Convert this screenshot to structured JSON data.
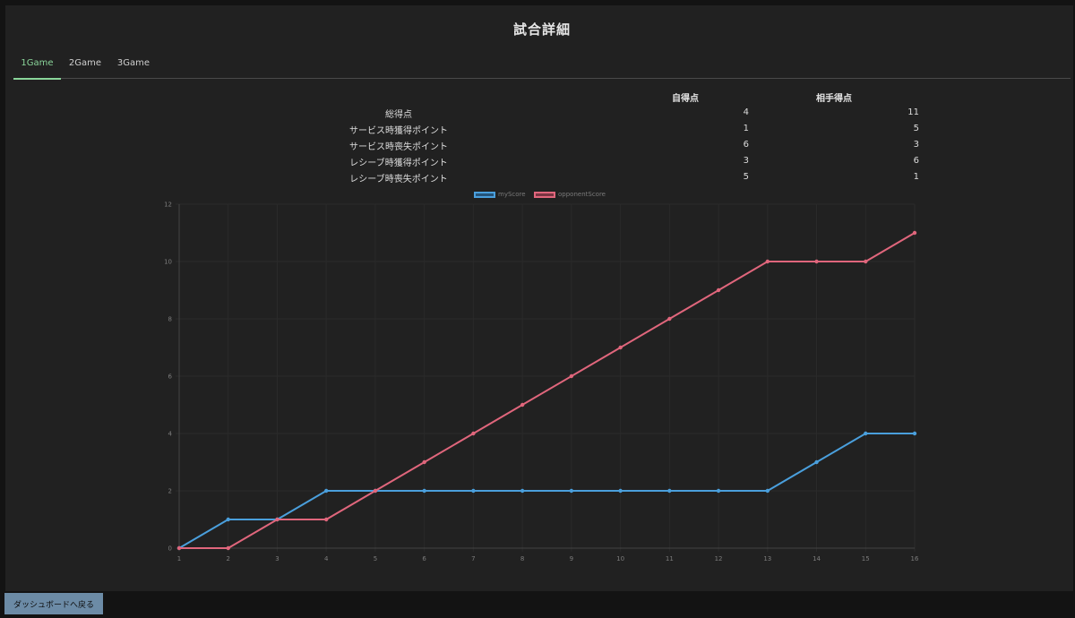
{
  "page_title": "試合詳細",
  "tabs": [
    {
      "label": "1Game",
      "active": true
    },
    {
      "label": "2Game",
      "active": false
    },
    {
      "label": "3Game",
      "active": false
    }
  ],
  "stats": {
    "headers": {
      "my": "自得点",
      "opponent": "相手得点"
    },
    "rows": [
      {
        "label": "総得点",
        "my": "4",
        "opponent": "11"
      },
      {
        "label": "サービス時獲得ポイント",
        "my": "1",
        "opponent": "5"
      },
      {
        "label": "サービス時喪失ポイント",
        "my": "6",
        "opponent": "3"
      },
      {
        "label": "レシーブ時獲得ポイント",
        "my": "3",
        "opponent": "6"
      },
      {
        "label": "レシーブ時喪失ポイント",
        "my": "5",
        "opponent": "1"
      }
    ]
  },
  "chart_data": {
    "type": "line",
    "x": [
      1,
      2,
      3,
      4,
      5,
      6,
      7,
      8,
      9,
      10,
      11,
      12,
      13,
      14,
      15,
      16
    ],
    "series": [
      {
        "name": "myScore",
        "color": "#4a9fdc",
        "values": [
          0,
          1,
          1,
          2,
          2,
          2,
          2,
          2,
          2,
          2,
          2,
          2,
          2,
          3,
          4,
          4
        ]
      },
      {
        "name": "opponentScore",
        "color": "#e0667c",
        "values": [
          0,
          0,
          1,
          1,
          2,
          3,
          4,
          5,
          6,
          7,
          8,
          9,
          10,
          10,
          10,
          11
        ]
      }
    ],
    "ylim": [
      0,
      12
    ],
    "yticks": [
      0,
      2,
      4,
      6,
      8,
      10,
      12
    ],
    "grid": true,
    "legend": "top-center"
  },
  "back_button": "ダッシュボードへ戻る",
  "colors": {
    "background": "#212121",
    "active_tab": "#8ad59a",
    "button": "#6c8ba6"
  }
}
